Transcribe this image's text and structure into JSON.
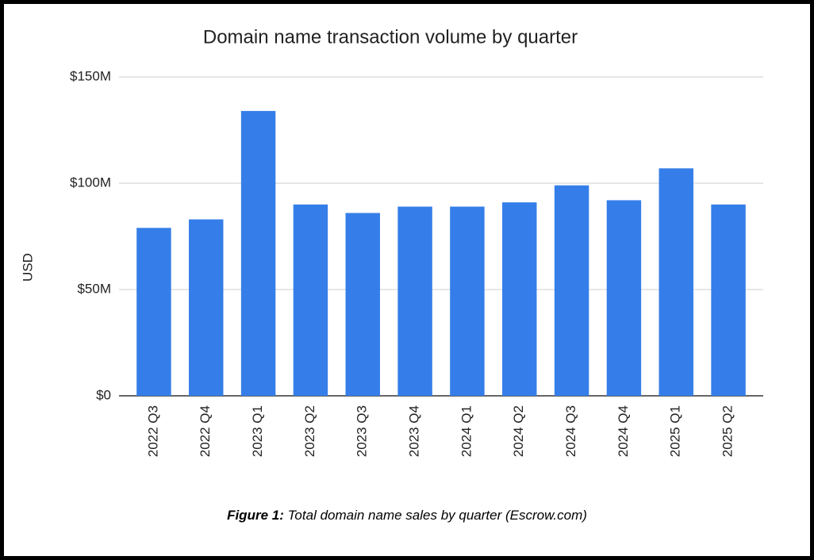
{
  "chart_data": {
    "type": "bar",
    "title": "Domain name transaction volume by quarter",
    "y_label": "USD",
    "categories": [
      "2022 Q3",
      "2022 Q4",
      "2023 Q1",
      "2023 Q2",
      "2023 Q3",
      "2023 Q4",
      "2024 Q1",
      "2024 Q2",
      "2024 Q3",
      "2024 Q4",
      "2025 Q1",
      "2025 Q2"
    ],
    "values": [
      79000000,
      83000000,
      134000000,
      90000000,
      86000000,
      89000000,
      89000000,
      91000000,
      99000000,
      92000000,
      107000000,
      90000000
    ],
    "color": "#357ee9",
    "ylim": [
      0,
      150000000
    ],
    "yticks": [
      {
        "value": 0,
        "label": "$0"
      },
      {
        "value": 50000000,
        "label": "$50M"
      },
      {
        "value": 100000000,
        "label": "$100M"
      },
      {
        "value": 150000000,
        "label": "$150M"
      }
    ],
    "grid": true
  },
  "caption": {
    "label": "Figure 1:",
    "text": "Total domain name sales by quarter (Escrow.com)"
  }
}
